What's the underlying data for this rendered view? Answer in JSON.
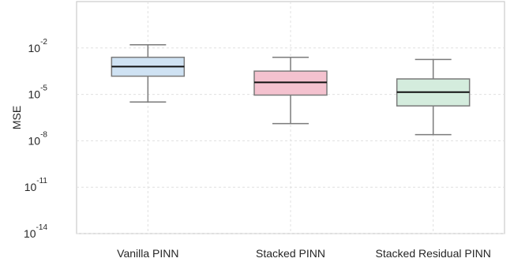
{
  "chart_data": {
    "type": "box",
    "title": "",
    "xlabel": "",
    "ylabel": "MSE",
    "yscale": "log",
    "ylim": [
      1e-14,
      10.0
    ],
    "grid": true,
    "yticks": [
      {
        "base": "10",
        "exp": "-2",
        "value": 0.01
      },
      {
        "base": "10",
        "exp": "-5",
        "value": 1e-05
      },
      {
        "base": "10",
        "exp": "-8",
        "value": 1e-08
      },
      {
        "base": "10",
        "exp": "-11",
        "value": 1e-11
      },
      {
        "base": "10",
        "exp": "-14",
        "value": 1e-14
      }
    ],
    "categories": [
      "Vanilla PINN",
      "Stacked PINN",
      "Stacked Residual PINN"
    ],
    "boxes": [
      {
        "category": "Vanilla PINN",
        "whisker_low": 3.2e-06,
        "q1": 0.00015,
        "median": 0.00063,
        "q3": 0.0025,
        "whisker_high": 0.016,
        "fill": "#cfe2f3"
      },
      {
        "category": "Stacked PINN",
        "whisker_low": 1.3e-07,
        "q1": 9e-06,
        "median": 6e-05,
        "q3": 0.00032,
        "whisker_high": 0.0025,
        "fill": "#f4c2cf"
      },
      {
        "category": "Stacked Residual PINN",
        "whisker_low": 2.5e-08,
        "q1": 1.8e-06,
        "median": 1.4e-05,
        "q3": 0.0001,
        "whisker_high": 0.0018,
        "fill": "#d4ecdd"
      }
    ]
  }
}
